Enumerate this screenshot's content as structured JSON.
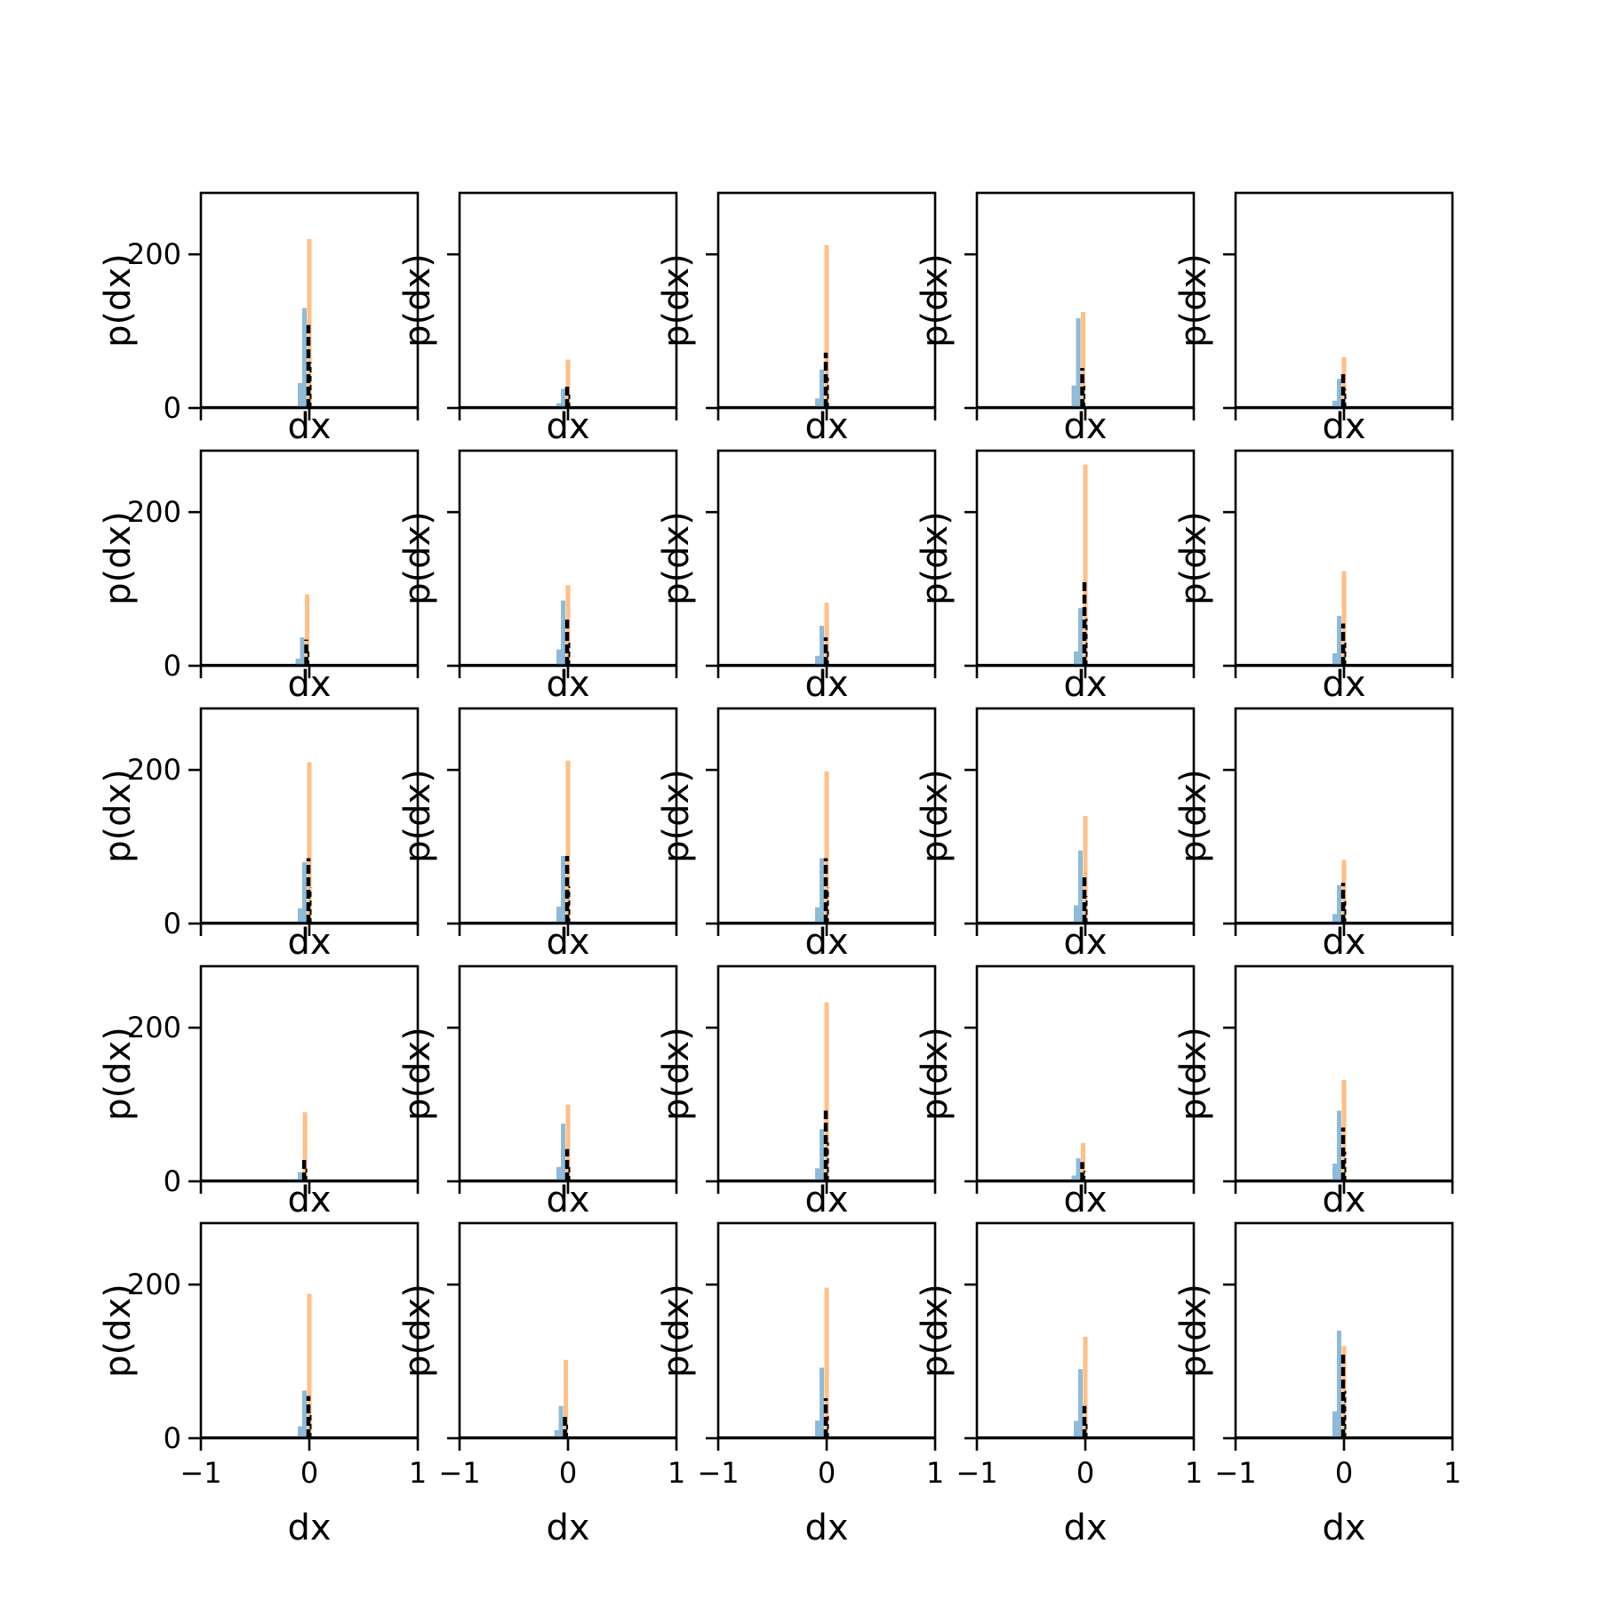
{
  "figure": {
    "background": "#ffffff",
    "colors": {
      "hist_blue": "#1f77b4",
      "hist_orange": "#ff7f0e",
      "kde_black": "#000000",
      "axes": "#000000"
    }
  },
  "chart_data": {
    "type": "histogram-grid",
    "rows": 5,
    "cols": 5,
    "xlabel": "dx",
    "ylabel": "p(dx)",
    "xlim": [
      -1,
      1
    ],
    "ylim": [
      0,
      280
    ],
    "xticks": [
      -1,
      0,
      1
    ],
    "xtick_labels": [
      "−1",
      "0",
      "1"
    ],
    "yticks": [
      0,
      200
    ],
    "ytick_labels": [
      "0",
      "200"
    ],
    "panels": [
      {
        "row": 0,
        "col": 0,
        "center": 0.0,
        "orange_peak": 220,
        "blue_peak": 130,
        "black_peak": 108
      },
      {
        "row": 0,
        "col": 1,
        "center": 0.0,
        "orange_peak": 63,
        "blue_peak": 25,
        "black_peak": 32
      },
      {
        "row": 0,
        "col": 2,
        "center": 0.0,
        "orange_peak": 212,
        "blue_peak": 50,
        "black_peak": 72
      },
      {
        "row": 0,
        "col": 3,
        "center": -0.02,
        "orange_peak": 125,
        "blue_peak": 117,
        "black_peak": 52
      },
      {
        "row": 0,
        "col": 4,
        "center": 0.0,
        "orange_peak": 66,
        "blue_peak": 38,
        "black_peak": 45
      },
      {
        "row": 1,
        "col": 0,
        "center": -0.02,
        "orange_peak": 93,
        "blue_peak": 37,
        "black_peak": 34
      },
      {
        "row": 1,
        "col": 1,
        "center": 0.0,
        "orange_peak": 105,
        "blue_peak": 85,
        "black_peak": 60
      },
      {
        "row": 1,
        "col": 2,
        "center": 0.0,
        "orange_peak": 82,
        "blue_peak": 52,
        "black_peak": 37
      },
      {
        "row": 1,
        "col": 3,
        "center": 0.0,
        "orange_peak": 262,
        "blue_peak": 75,
        "black_peak": 112
      },
      {
        "row": 1,
        "col": 4,
        "center": 0.0,
        "orange_peak": 123,
        "blue_peak": 65,
        "black_peak": 55
      },
      {
        "row": 2,
        "col": 0,
        "center": 0.0,
        "orange_peak": 210,
        "blue_peak": 80,
        "black_peak": 85
      },
      {
        "row": 2,
        "col": 1,
        "center": 0.0,
        "orange_peak": 212,
        "blue_peak": 88,
        "black_peak": 88
      },
      {
        "row": 2,
        "col": 2,
        "center": 0.0,
        "orange_peak": 198,
        "blue_peak": 85,
        "black_peak": 85
      },
      {
        "row": 2,
        "col": 3,
        "center": 0.0,
        "orange_peak": 140,
        "blue_peak": 95,
        "black_peak": 65
      },
      {
        "row": 2,
        "col": 4,
        "center": 0.0,
        "orange_peak": 83,
        "blue_peak": 50,
        "black_peak": 53
      },
      {
        "row": 3,
        "col": 0,
        "center": -0.04,
        "orange_peak": 90,
        "blue_peak": 12,
        "black_peak": 30
      },
      {
        "row": 3,
        "col": 1,
        "center": 0.0,
        "orange_peak": 100,
        "blue_peak": 75,
        "black_peak": 42
      },
      {
        "row": 3,
        "col": 2,
        "center": 0.0,
        "orange_peak": 233,
        "blue_peak": 68,
        "black_peak": 92
      },
      {
        "row": 3,
        "col": 3,
        "center": -0.02,
        "orange_peak": 50,
        "blue_peak": 30,
        "black_peak": 25
      },
      {
        "row": 3,
        "col": 4,
        "center": 0.0,
        "orange_peak": 132,
        "blue_peak": 92,
        "black_peak": 70
      },
      {
        "row": 4,
        "col": 0,
        "center": 0.0,
        "orange_peak": 188,
        "blue_peak": 62,
        "black_peak": 55
      },
      {
        "row": 4,
        "col": 1,
        "center": -0.02,
        "orange_peak": 102,
        "blue_peak": 42,
        "black_peak": 32
      },
      {
        "row": 4,
        "col": 2,
        "center": 0.0,
        "orange_peak": 196,
        "blue_peak": 92,
        "black_peak": 52
      },
      {
        "row": 4,
        "col": 3,
        "center": 0.0,
        "orange_peak": 132,
        "blue_peak": 90,
        "black_peak": 42
      },
      {
        "row": 4,
        "col": 4,
        "center": 0.0,
        "orange_peak": 120,
        "blue_peak": 140,
        "black_peak": 112
      }
    ]
  }
}
